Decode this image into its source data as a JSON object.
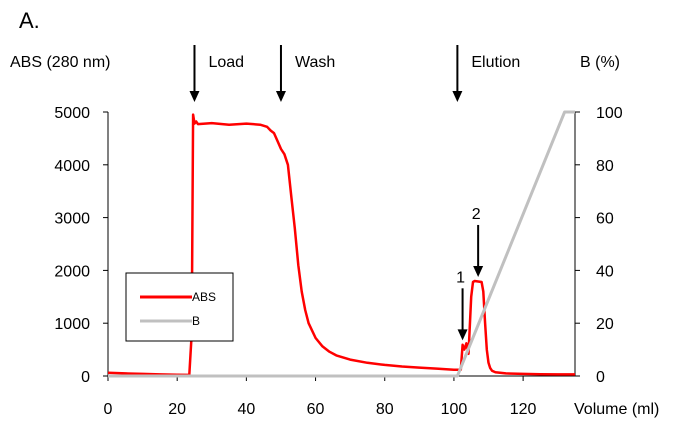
{
  "panel_label": "A.",
  "chart_data": {
    "type": "line",
    "xlabel": "Volume (ml)",
    "ylabel_left": "ABS (280 nm)",
    "ylabel_right": "B (%)",
    "xlim": [
      0,
      135
    ],
    "ylim_left": [
      0,
      5000
    ],
    "ylim_right": [
      0,
      100
    ],
    "x_ticks": [
      0,
      20,
      40,
      60,
      80,
      100,
      120
    ],
    "y_left_ticks": [
      0,
      1000,
      2000,
      3000,
      4000,
      5000
    ],
    "y_right_ticks": [
      0,
      20,
      40,
      60,
      80,
      100
    ],
    "grid": false,
    "legend": {
      "position": "lower-left",
      "entries": [
        "ABS",
        "B"
      ]
    },
    "series": [
      {
        "name": "ABS",
        "axis": "left",
        "color": "#ff0000",
        "x": [
          0,
          5,
          10,
          15,
          20,
          23.5,
          24.2,
          24.6,
          25.0,
          25.5,
          26,
          30,
          35,
          40,
          44,
          46,
          47,
          48,
          49,
          50,
          51,
          52,
          53,
          54,
          55,
          56,
          57,
          58,
          60,
          62,
          64,
          66,
          70,
          75,
          80,
          85,
          90,
          95,
          100,
          102,
          102.5,
          103,
          103.6,
          104.2,
          105,
          105.5,
          106,
          107,
          108,
          108.5,
          109,
          109.5,
          110,
          110.5,
          111,
          112,
          115,
          120,
          125,
          130,
          135
        ],
        "y": [
          60,
          50,
          40,
          30,
          25,
          20,
          800,
          4950,
          4780,
          4820,
          4770,
          4790,
          4760,
          4780,
          4760,
          4720,
          4650,
          4600,
          4450,
          4300,
          4200,
          4000,
          3400,
          2800,
          2100,
          1600,
          1250,
          1000,
          720,
          560,
          460,
          390,
          310,
          250,
          210,
          180,
          160,
          140,
          120,
          120,
          590,
          500,
          620,
          420,
          1500,
          1780,
          1800,
          1790,
          1780,
          1600,
          1000,
          500,
          250,
          150,
          100,
          70,
          50,
          40,
          35,
          30,
          30
        ]
      },
      {
        "name": "B",
        "axis": "right",
        "color": "#c0c0c0",
        "x": [
          0,
          101,
          132,
          135
        ],
        "y": [
          0,
          0,
          100,
          100
        ]
      }
    ],
    "annotations": [
      {
        "text": "Load",
        "x": 25
      },
      {
        "text": "Wash",
        "x": 50
      },
      {
        "text": "Elution",
        "x": 101
      },
      {
        "text": "1",
        "x": 102.5,
        "y": 600
      },
      {
        "text": "2",
        "x": 107,
        "y": 1800
      }
    ]
  }
}
